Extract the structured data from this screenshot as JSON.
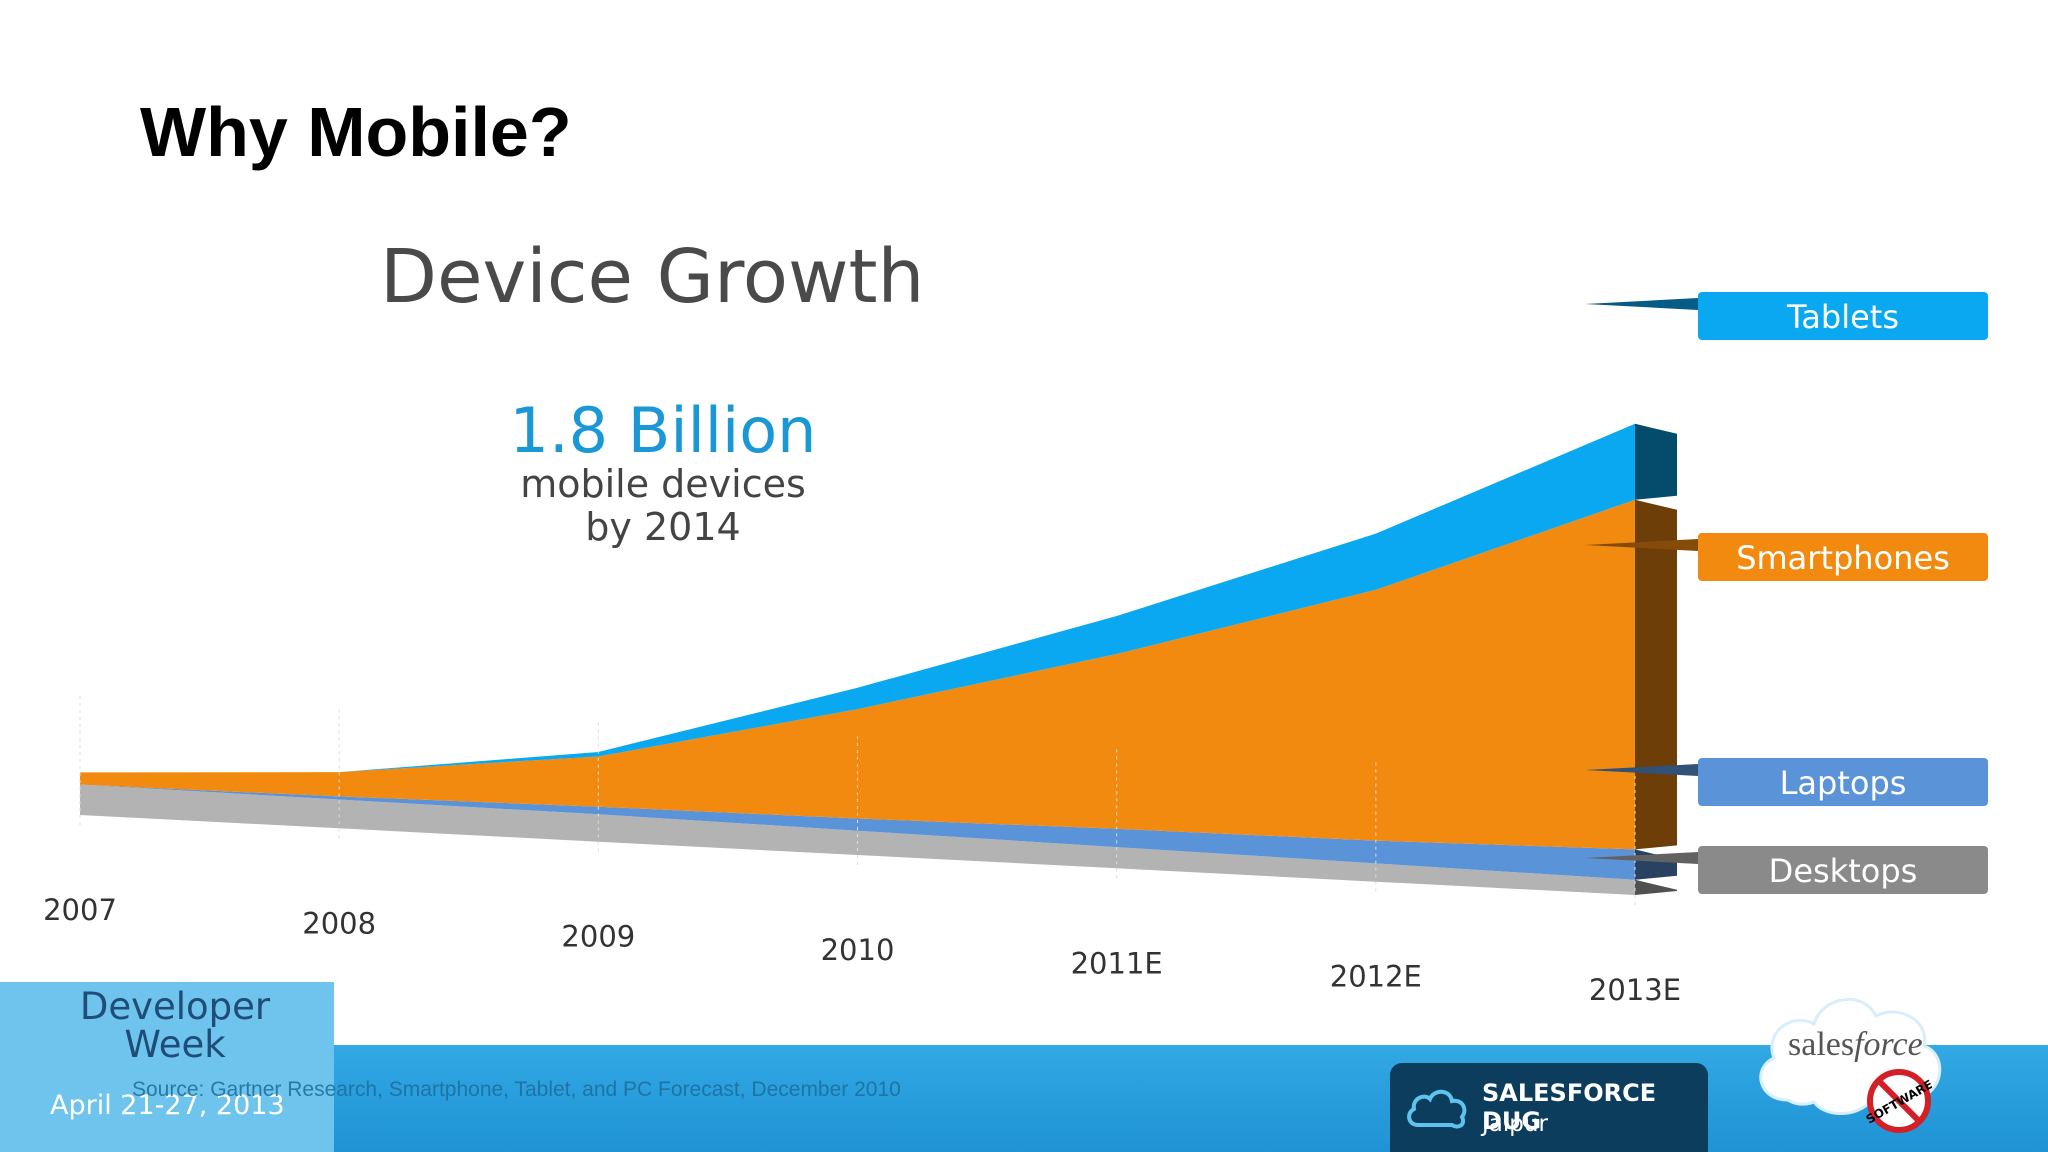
{
  "slide": {
    "title": "Why Mobile?",
    "source": "Source:  Gartner Research, Smartphone, Tablet, and PC Forecast, December 2010"
  },
  "chart_data": {
    "type": "area",
    "title": "Device Growth",
    "annotation": {
      "headline": "1.8 Billion",
      "line1": "mobile devices",
      "line2": "by 2014"
    },
    "categories": [
      "2007",
      "2008",
      "2009",
      "2010",
      "2011E",
      "2012E",
      "2013E"
    ],
    "value_unit": "relative (no y-axis shown)",
    "stacked": true,
    "series": [
      {
        "name": "Desktops",
        "color": "#b3b3b3",
        "values": [
          20,
          19,
          18,
          16,
          14,
          12,
          10
        ]
      },
      {
        "name": "Laptops",
        "color": "#5b93d8",
        "values": [
          0,
          2,
          5,
          8,
          12,
          15,
          20
        ]
      },
      {
        "name": "Smartphones",
        "color": "#f28a10",
        "values": [
          8,
          16,
          33,
          72,
          115,
          165,
          230
        ]
      },
      {
        "name": "Tablets",
        "color": "#0aa8f0",
        "values": [
          0,
          0,
          3,
          14,
          25,
          37,
          50
        ]
      }
    ],
    "legend_position": "right",
    "grid": false
  },
  "branding": {
    "event_line1": "Developer",
    "event_line2": "Week",
    "event_date": "April 21-27, 2013",
    "dug_line1": "SALESFORCE DUG",
    "dug_line2": "Jaipur",
    "sf_sales": "sales",
    "sf_force": "force",
    "nosoft": "SOFTWARE"
  }
}
